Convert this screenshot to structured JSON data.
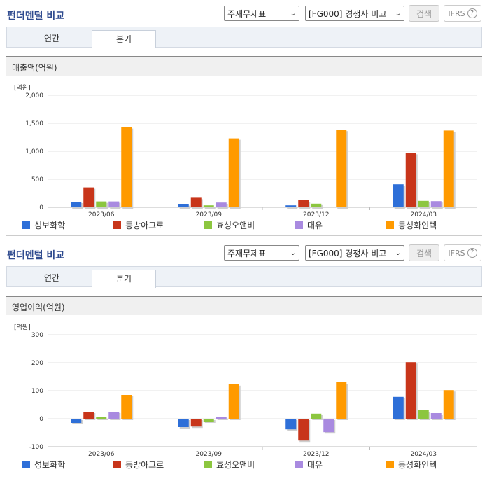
{
  "panels": [
    {
      "title": "펀더멘털 비교",
      "select_topic": "주재무제표",
      "select_group": "[FG000] 경쟁사 비교",
      "search_label": "검색",
      "ifrs_label": "IFRS",
      "tabs": [
        "연간",
        "분기"
      ],
      "active_tab": "분기",
      "section_title": "매출액(억원)",
      "unit_label": "[억원]"
    },
    {
      "title": "펀더멘털 비교",
      "select_topic": "주재무제표",
      "select_group": "[FG000] 경쟁사 비교",
      "search_label": "검색",
      "ifrs_label": "IFRS",
      "tabs": [
        "연간",
        "분기"
      ],
      "active_tab": "분기",
      "section_title": "영업이익(억원)",
      "unit_label": "[억원]"
    }
  ],
  "chart_data": [
    {
      "type": "bar",
      "title": "매출액(억원)",
      "categories": [
        "2023/06",
        "2023/09",
        "2023/12",
        "2024/03"
      ],
      "ylim": [
        0,
        2000
      ],
      "yticks": [
        0,
        500,
        1000,
        1500,
        2000
      ],
      "ytick_labels": [
        "0",
        "500",
        "1,000",
        "1,500",
        "2,000"
      ],
      "series": [
        {
          "name": "성보화학",
          "color": "#2e6fd8",
          "values": [
            100,
            55,
            35,
            410
          ]
        },
        {
          "name": "동방아그로",
          "color": "#c8351a",
          "values": [
            355,
            170,
            125,
            970
          ]
        },
        {
          "name": "효성오앤비",
          "color": "#8cc63f",
          "values": [
            105,
            35,
            65,
            115
          ]
        },
        {
          "name": "대유",
          "color": "#a98ae0",
          "values": [
            105,
            85,
            0,
            110
          ]
        },
        {
          "name": "동성화인텍",
          "color": "#ff9a00",
          "values": [
            1430,
            1230,
            1385,
            1370
          ]
        }
      ]
    },
    {
      "type": "bar",
      "title": "영업이익(억원)",
      "categories": [
        "2023/06",
        "2023/09",
        "2023/12",
        "2024/03"
      ],
      "ylim": [
        -100,
        300
      ],
      "yticks": [
        -100,
        0,
        100,
        200,
        300
      ],
      "ytick_labels": [
        "-100",
        "0",
        "100",
        "200",
        "300"
      ],
      "series": [
        {
          "name": "성보화학",
          "color": "#2e6fd8",
          "values": [
            -15,
            -30,
            -38,
            78
          ]
        },
        {
          "name": "동방아그로",
          "color": "#c8351a",
          "values": [
            25,
            -28,
            -78,
            202
          ]
        },
        {
          "name": "효성오앤비",
          "color": "#8cc63f",
          "values": [
            5,
            -10,
            18,
            30
          ]
        },
        {
          "name": "대유",
          "color": "#a98ae0",
          "values": [
            25,
            5,
            -48,
            20
          ]
        },
        {
          "name": "동성화인텍",
          "color": "#ff9a00",
          "values": [
            85,
            123,
            130,
            102
          ]
        }
      ]
    }
  ]
}
